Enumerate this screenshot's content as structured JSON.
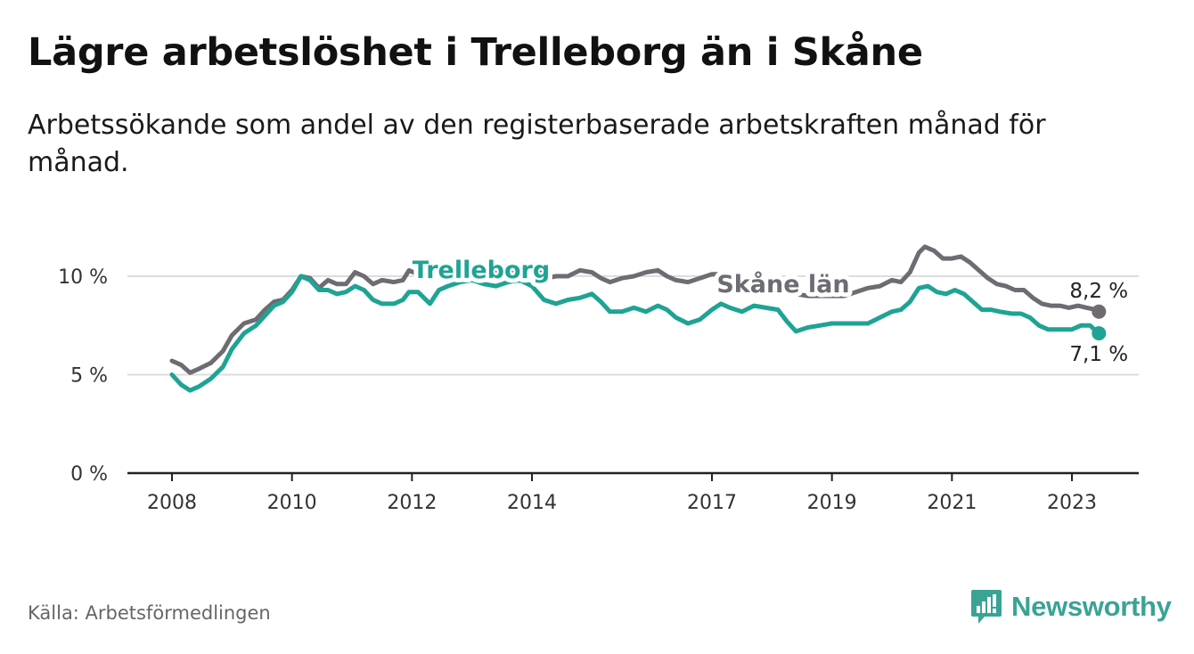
{
  "title": "Lägre arbetslöshet i Trelleborg än i Skåne",
  "subtitle": "Arbetssökande som andel av den registerbaserade arbetskraften månad för månad.",
  "source": "Källa: Arbetsförmedlingen",
  "brand": {
    "name": "Newsworthy",
    "icon": "newsworthy-logo-icon"
  },
  "colors": {
    "skane": "#6e6b72",
    "trelleborg": "#1fa394",
    "grid": "#dddddd",
    "axis": "#222222",
    "brand": "#3aa394"
  },
  "chart_data": {
    "type": "line",
    "title": "Lägre arbetslöshet i Trelleborg än i Skåne",
    "xlabel": "",
    "ylabel": "",
    "xlim": [
      2008.0,
      2024.25
    ],
    "ylim": [
      0,
      10
    ],
    "yticks": [
      0,
      5,
      10
    ],
    "ytick_labels": [
      "0 %",
      "5 %",
      "10 %"
    ],
    "xticks": [
      2008,
      2010,
      2012,
      2014,
      2017,
      2019,
      2021,
      2023
    ],
    "xtick_labels": [
      "2008",
      "2010",
      "2012",
      "2014",
      "2017",
      "2019",
      "2021",
      "2023"
    ],
    "grid": true,
    "series": [
      {
        "name": "Skåne län",
        "label": "Skåne län",
        "color": "#6e6b72",
        "end_label": "8,2 %",
        "points": [
          [
            2008.0,
            5.7
          ],
          [
            2008.15,
            5.5
          ],
          [
            2008.3,
            5.1
          ],
          [
            2008.45,
            5.3
          ],
          [
            2008.65,
            5.6
          ],
          [
            2008.85,
            6.2
          ],
          [
            2009.0,
            7.0
          ],
          [
            2009.2,
            7.6
          ],
          [
            2009.4,
            7.8
          ],
          [
            2009.55,
            8.3
          ],
          [
            2009.7,
            8.7
          ],
          [
            2009.85,
            8.8
          ],
          [
            2010.0,
            9.3
          ],
          [
            2010.15,
            10.0
          ],
          [
            2010.3,
            9.9
          ],
          [
            2010.45,
            9.4
          ],
          [
            2010.6,
            9.8
          ],
          [
            2010.75,
            9.6
          ],
          [
            2010.9,
            9.6
          ],
          [
            2011.05,
            10.2
          ],
          [
            2011.2,
            10.0
          ],
          [
            2011.35,
            9.6
          ],
          [
            2011.5,
            9.8
          ],
          [
            2011.7,
            9.7
          ],
          [
            2011.85,
            9.8
          ],
          [
            2011.95,
            10.3
          ],
          [
            2012.1,
            10.1
          ],
          [
            2012.3,
            9.8
          ],
          [
            2012.5,
            10.3
          ],
          [
            2012.7,
            10.2
          ],
          [
            2012.9,
            10.1
          ],
          [
            2013.1,
            10.4
          ],
          [
            2013.3,
            10.2
          ],
          [
            2013.5,
            10.1
          ],
          [
            2013.7,
            10.3
          ],
          [
            2013.9,
            10.0
          ],
          [
            2014.1,
            10.3
          ],
          [
            2014.25,
            9.9
          ],
          [
            2014.4,
            10.0
          ],
          [
            2014.6,
            10.0
          ],
          [
            2014.8,
            10.3
          ],
          [
            2015.0,
            10.2
          ],
          [
            2015.15,
            9.9
          ],
          [
            2015.3,
            9.7
          ],
          [
            2015.5,
            9.9
          ],
          [
            2015.7,
            10.0
          ],
          [
            2015.9,
            10.2
          ],
          [
            2016.1,
            10.3
          ],
          [
            2016.25,
            10.0
          ],
          [
            2016.4,
            9.8
          ],
          [
            2016.6,
            9.7
          ],
          [
            2016.8,
            9.9
          ],
          [
            2017.0,
            10.1
          ],
          [
            2017.2,
            10.1
          ],
          [
            2017.4,
            10.0
          ],
          [
            2017.6,
            9.7
          ],
          [
            2017.8,
            9.6
          ],
          [
            2018.0,
            9.6
          ],
          [
            2018.2,
            9.3
          ],
          [
            2018.4,
            9.1
          ],
          [
            2018.6,
            9.0
          ],
          [
            2018.8,
            9.0
          ],
          [
            2019.0,
            9.0
          ],
          [
            2019.2,
            9.0
          ],
          [
            2019.4,
            9.2
          ],
          [
            2019.6,
            9.4
          ],
          [
            2019.8,
            9.5
          ],
          [
            2020.0,
            9.8
          ],
          [
            2020.15,
            9.7
          ],
          [
            2020.3,
            10.2
          ],
          [
            2020.45,
            11.2
          ],
          [
            2020.55,
            11.5
          ],
          [
            2020.7,
            11.3
          ],
          [
            2020.85,
            10.9
          ],
          [
            2021.0,
            10.9
          ],
          [
            2021.15,
            11.0
          ],
          [
            2021.3,
            10.7
          ],
          [
            2021.45,
            10.3
          ],
          [
            2021.6,
            9.9
          ],
          [
            2021.75,
            9.6
          ],
          [
            2021.9,
            9.5
          ],
          [
            2022.05,
            9.3
          ],
          [
            2022.2,
            9.3
          ],
          [
            2022.35,
            8.9
          ],
          [
            2022.5,
            8.6
          ],
          [
            2022.65,
            8.5
          ],
          [
            2022.8,
            8.5
          ],
          [
            2022.95,
            8.4
          ],
          [
            2023.1,
            8.5
          ],
          [
            2023.25,
            8.4
          ],
          [
            2023.4,
            8.3
          ],
          [
            2023.45,
            8.2
          ]
        ]
      },
      {
        "name": "Trelleborg",
        "label": "Trelleborg",
        "color": "#1fa394",
        "end_label": "7,1 %",
        "points": [
          [
            2008.0,
            5.0
          ],
          [
            2008.15,
            4.5
          ],
          [
            2008.3,
            4.2
          ],
          [
            2008.45,
            4.4
          ],
          [
            2008.65,
            4.8
          ],
          [
            2008.85,
            5.4
          ],
          [
            2009.0,
            6.3
          ],
          [
            2009.2,
            7.1
          ],
          [
            2009.4,
            7.5
          ],
          [
            2009.55,
            8.0
          ],
          [
            2009.7,
            8.5
          ],
          [
            2009.85,
            8.7
          ],
          [
            2010.0,
            9.2
          ],
          [
            2010.15,
            10.0
          ],
          [
            2010.3,
            9.8
          ],
          [
            2010.45,
            9.3
          ],
          [
            2010.6,
            9.3
          ],
          [
            2010.75,
            9.1
          ],
          [
            2010.9,
            9.2
          ],
          [
            2011.05,
            9.5
          ],
          [
            2011.2,
            9.3
          ],
          [
            2011.35,
            8.8
          ],
          [
            2011.5,
            8.6
          ],
          [
            2011.7,
            8.6
          ],
          [
            2011.85,
            8.8
          ],
          [
            2011.95,
            9.2
          ],
          [
            2012.1,
            9.2
          ],
          [
            2012.3,
            8.6
          ],
          [
            2012.45,
            9.3
          ],
          [
            2012.6,
            9.5
          ],
          [
            2012.8,
            9.7
          ],
          [
            2013.0,
            9.8
          ],
          [
            2013.2,
            9.6
          ],
          [
            2013.4,
            9.5
          ],
          [
            2013.6,
            9.7
          ],
          [
            2013.8,
            9.8
          ],
          [
            2014.0,
            9.5
          ],
          [
            2014.2,
            8.8
          ],
          [
            2014.4,
            8.6
          ],
          [
            2014.6,
            8.8
          ],
          [
            2014.8,
            8.9
          ],
          [
            2015.0,
            9.1
          ],
          [
            2015.15,
            8.7
          ],
          [
            2015.3,
            8.2
          ],
          [
            2015.5,
            8.2
          ],
          [
            2015.7,
            8.4
          ],
          [
            2015.9,
            8.2
          ],
          [
            2016.1,
            8.5
          ],
          [
            2016.25,
            8.3
          ],
          [
            2016.4,
            7.9
          ],
          [
            2016.6,
            7.6
          ],
          [
            2016.8,
            7.8
          ],
          [
            2017.0,
            8.3
          ],
          [
            2017.15,
            8.6
          ],
          [
            2017.3,
            8.4
          ],
          [
            2017.5,
            8.2
          ],
          [
            2017.7,
            8.5
          ],
          [
            2017.9,
            8.4
          ],
          [
            2018.1,
            8.3
          ],
          [
            2018.25,
            7.7
          ],
          [
            2018.4,
            7.2
          ],
          [
            2018.6,
            7.4
          ],
          [
            2018.8,
            7.5
          ],
          [
            2019.0,
            7.6
          ],
          [
            2019.2,
            7.6
          ],
          [
            2019.4,
            7.6
          ],
          [
            2019.6,
            7.6
          ],
          [
            2019.8,
            7.9
          ],
          [
            2020.0,
            8.2
          ],
          [
            2020.15,
            8.3
          ],
          [
            2020.3,
            8.7
          ],
          [
            2020.45,
            9.4
          ],
          [
            2020.6,
            9.5
          ],
          [
            2020.75,
            9.2
          ],
          [
            2020.9,
            9.1
          ],
          [
            2021.05,
            9.3
          ],
          [
            2021.2,
            9.1
          ],
          [
            2021.35,
            8.7
          ],
          [
            2021.5,
            8.3
          ],
          [
            2021.65,
            8.3
          ],
          [
            2021.8,
            8.2
          ],
          [
            2022.0,
            8.1
          ],
          [
            2022.15,
            8.1
          ],
          [
            2022.3,
            7.9
          ],
          [
            2022.45,
            7.5
          ],
          [
            2022.6,
            7.3
          ],
          [
            2022.8,
            7.3
          ],
          [
            2023.0,
            7.3
          ],
          [
            2023.15,
            7.5
          ],
          [
            2023.3,
            7.5
          ],
          [
            2023.45,
            7.1
          ]
        ]
      }
    ]
  }
}
